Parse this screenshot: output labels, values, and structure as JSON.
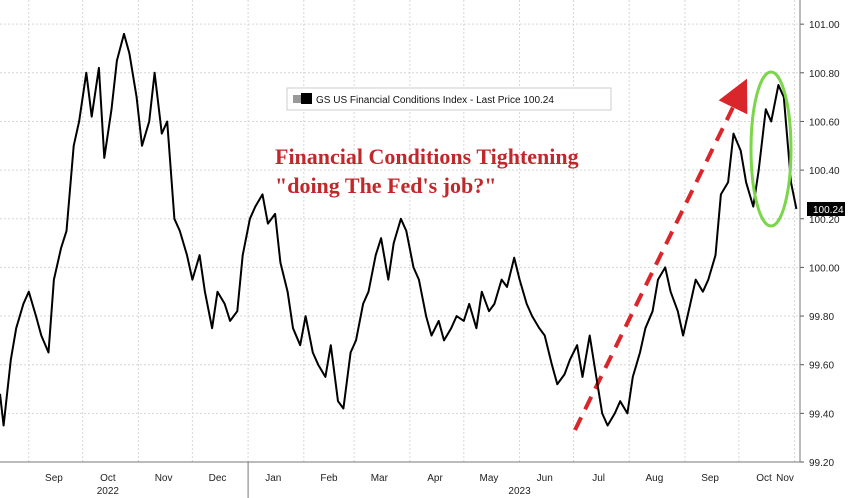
{
  "chart_data": {
    "type": "line",
    "legend": "GS US Financial Conditions Index - Last Price 100.24",
    "last_price_label": "100.24",
    "annotation": [
      "Financial Conditions Tightening",
      "\"doing The Fed's job?\""
    ],
    "colors": {
      "line": "#000000",
      "arrow": "#d9262a",
      "ellipse": "#7bd64a",
      "annotation": "#c0282b",
      "grid": "#d6d6d6"
    },
    "ylim": [
      99.2,
      101.05
    ],
    "y_ticks": [
      "99.20",
      "99.40",
      "99.60",
      "99.80",
      "100.00",
      "100.20",
      "100.40",
      "100.60",
      "100.80",
      "101.00"
    ],
    "x_ticks": [
      "Sep",
      "Oct",
      "Nov",
      "Dec",
      "Jan",
      "Feb",
      "Mar",
      "Apr",
      "May",
      "Jun",
      "Jul",
      "Aug",
      "Sep",
      "Oct",
      "Nov"
    ],
    "years": [
      "2022",
      "2023"
    ],
    "x_range": [
      "2022-08-16",
      "2023-11-04"
    ],
    "grid": true,
    "series": [
      {
        "values": [
          [
            "2022-08-16",
            99.48
          ],
          [
            "2022-08-18",
            99.35
          ],
          [
            "2022-08-22",
            99.62
          ],
          [
            "2022-08-25",
            99.75
          ],
          [
            "2022-08-29",
            99.85
          ],
          [
            "2022-09-01",
            99.9
          ],
          [
            "2022-09-05",
            99.8
          ],
          [
            "2022-09-08",
            99.72
          ],
          [
            "2022-09-12",
            99.65
          ],
          [
            "2022-09-15",
            99.95
          ],
          [
            "2022-09-19",
            100.08
          ],
          [
            "2022-09-22",
            100.15
          ],
          [
            "2022-09-26",
            100.5
          ],
          [
            "2022-09-29",
            100.6
          ],
          [
            "2022-10-03",
            100.8
          ],
          [
            "2022-10-06",
            100.62
          ],
          [
            "2022-10-10",
            100.82
          ],
          [
            "2022-10-13",
            100.45
          ],
          [
            "2022-10-17",
            100.65
          ],
          [
            "2022-10-20",
            100.85
          ],
          [
            "2022-10-24",
            100.96
          ],
          [
            "2022-10-27",
            100.88
          ],
          [
            "2022-10-31",
            100.7
          ],
          [
            "2022-11-03",
            100.5
          ],
          [
            "2022-11-07",
            100.6
          ],
          [
            "2022-11-10",
            100.8
          ],
          [
            "2022-11-14",
            100.55
          ],
          [
            "2022-11-17",
            100.6
          ],
          [
            "2022-11-21",
            100.2
          ],
          [
            "2022-11-24",
            100.15
          ],
          [
            "2022-11-28",
            100.05
          ],
          [
            "2022-12-01",
            99.95
          ],
          [
            "2022-12-05",
            100.05
          ],
          [
            "2022-12-08",
            99.9
          ],
          [
            "2022-12-12",
            99.75
          ],
          [
            "2022-12-15",
            99.9
          ],
          [
            "2022-12-19",
            99.85
          ],
          [
            "2022-12-22",
            99.78
          ],
          [
            "2022-12-26",
            99.82
          ],
          [
            "2022-12-29",
            100.05
          ],
          [
            "2023-01-02",
            100.2
          ],
          [
            "2023-01-05",
            100.25
          ],
          [
            "2023-01-09",
            100.3
          ],
          [
            "2023-01-12",
            100.18
          ],
          [
            "2023-01-16",
            100.22
          ],
          [
            "2023-01-19",
            100.02
          ],
          [
            "2023-01-23",
            99.9
          ],
          [
            "2023-01-26",
            99.75
          ],
          [
            "2023-01-30",
            99.68
          ],
          [
            "2023-02-02",
            99.8
          ],
          [
            "2023-02-06",
            99.65
          ],
          [
            "2023-02-09",
            99.6
          ],
          [
            "2023-02-13",
            99.55
          ],
          [
            "2023-02-16",
            99.68
          ],
          [
            "2023-02-20",
            99.45
          ],
          [
            "2023-02-23",
            99.42
          ],
          [
            "2023-02-27",
            99.65
          ],
          [
            "2023-03-02",
            99.7
          ],
          [
            "2023-03-06",
            99.85
          ],
          [
            "2023-03-09",
            99.9
          ],
          [
            "2023-03-13",
            100.05
          ],
          [
            "2023-03-16",
            100.12
          ],
          [
            "2023-03-20",
            99.95
          ],
          [
            "2023-03-23",
            100.1
          ],
          [
            "2023-03-27",
            100.2
          ],
          [
            "2023-03-30",
            100.15
          ],
          [
            "2023-04-03",
            100.0
          ],
          [
            "2023-04-06",
            99.95
          ],
          [
            "2023-04-10",
            99.8
          ],
          [
            "2023-04-13",
            99.72
          ],
          [
            "2023-04-17",
            99.78
          ],
          [
            "2023-04-20",
            99.7
          ],
          [
            "2023-04-24",
            99.75
          ],
          [
            "2023-04-27",
            99.8
          ],
          [
            "2023-05-01",
            99.78
          ],
          [
            "2023-05-04",
            99.85
          ],
          [
            "2023-05-08",
            99.75
          ],
          [
            "2023-05-11",
            99.9
          ],
          [
            "2023-05-15",
            99.82
          ],
          [
            "2023-05-18",
            99.85
          ],
          [
            "2023-05-22",
            99.95
          ],
          [
            "2023-05-25",
            99.92
          ],
          [
            "2023-05-29",
            100.04
          ],
          [
            "2023-06-01",
            99.95
          ],
          [
            "2023-06-05",
            99.85
          ],
          [
            "2023-06-08",
            99.8
          ],
          [
            "2023-06-12",
            99.75
          ],
          [
            "2023-06-15",
            99.72
          ],
          [
            "2023-06-19",
            99.6
          ],
          [
            "2023-06-22",
            99.52
          ],
          [
            "2023-06-26",
            99.56
          ],
          [
            "2023-06-29",
            99.62
          ],
          [
            "2023-07-03",
            99.68
          ],
          [
            "2023-07-06",
            99.55
          ],
          [
            "2023-07-10",
            99.72
          ],
          [
            "2023-07-13",
            99.58
          ],
          [
            "2023-07-17",
            99.4
          ],
          [
            "2023-07-20",
            99.35
          ],
          [
            "2023-07-24",
            99.4
          ],
          [
            "2023-07-27",
            99.45
          ],
          [
            "2023-07-31",
            99.4
          ],
          [
            "2023-08-03",
            99.55
          ],
          [
            "2023-08-07",
            99.65
          ],
          [
            "2023-08-10",
            99.75
          ],
          [
            "2023-08-14",
            99.82
          ],
          [
            "2023-08-17",
            99.95
          ],
          [
            "2023-08-21",
            100.0
          ],
          [
            "2023-08-24",
            99.9
          ],
          [
            "2023-08-28",
            99.82
          ],
          [
            "2023-08-31",
            99.72
          ],
          [
            "2023-09-04",
            99.85
          ],
          [
            "2023-09-07",
            99.95
          ],
          [
            "2023-09-11",
            99.9
          ],
          [
            "2023-09-14",
            99.95
          ],
          [
            "2023-09-18",
            100.05
          ],
          [
            "2023-09-21",
            100.3
          ],
          [
            "2023-09-25",
            100.35
          ],
          [
            "2023-09-28",
            100.55
          ],
          [
            "2023-10-02",
            100.48
          ],
          [
            "2023-10-05",
            100.35
          ],
          [
            "2023-10-09",
            100.25
          ],
          [
            "2023-10-12",
            100.4
          ],
          [
            "2023-10-16",
            100.65
          ],
          [
            "2023-10-19",
            100.6
          ],
          [
            "2023-10-23",
            100.75
          ],
          [
            "2023-10-26",
            100.7
          ],
          [
            "2023-10-30",
            100.35
          ],
          [
            "2023-11-02",
            100.24
          ]
        ]
      }
    ]
  }
}
